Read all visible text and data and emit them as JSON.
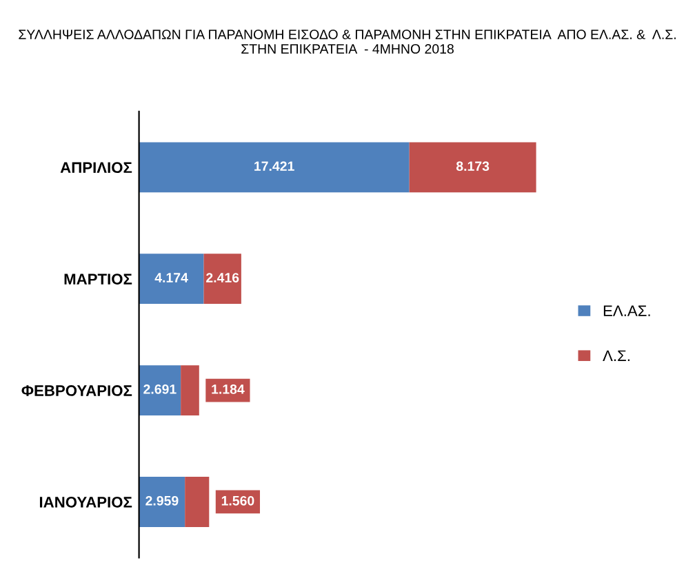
{
  "chart_data": {
    "type": "bar",
    "orientation": "horizontal",
    "stacked": true,
    "title": "ΣΥΛΛΗΨΕΙΣ ΑΛΛΟΔΑΠΩΝ ΓΙΑ ΠΑΡΑΝΟΜΗ ΕΙΣΟΔΟ & ΠΑΡΑΜΟΝΗ ΣΤΗΝ ΕΠΙΚΡΑΤΕΙΑ  ΑΠΟ ΕΛ.ΑΣ. &  Λ.Σ. ΣΤΗΝ ΕΠΙΚΡΑΤΕΙΑ  - 4ΜΗΝΟ 2018",
    "categories": [
      "ΑΠΡΙΛΙΟΣ",
      "ΜΑΡΤΙΟΣ",
      "ΦΕΒΡΟΥΑΡΙΟΣ",
      "ΙΑΝΟΥΑΡΙΟΣ"
    ],
    "series": [
      {
        "name": "ΕΛ.ΑΣ.",
        "color": "#4f81bd",
        "values": [
          17421,
          4174,
          2691,
          2959
        ],
        "value_labels": [
          "17.421",
          "4.174",
          "2.691",
          "2.959"
        ]
      },
      {
        "name": "Λ.Σ.",
        "color": "#c0504d",
        "values": [
          8173,
          2416,
          1184,
          1560
        ],
        "value_labels": [
          "8.173",
          "2.416",
          "1.184",
          "1.560"
        ]
      }
    ],
    "legend": "right",
    "grid": false
  }
}
